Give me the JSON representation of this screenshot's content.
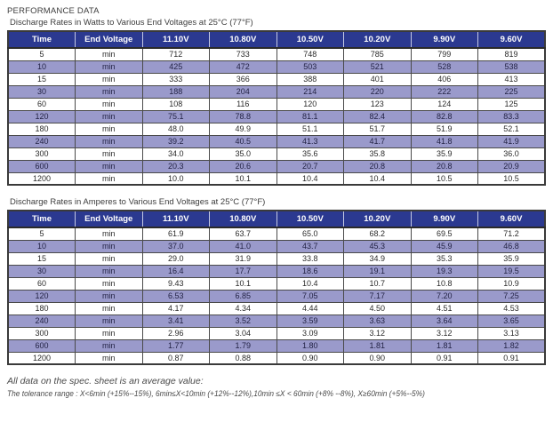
{
  "page": {
    "title": "PERFORMANCE DATA"
  },
  "tables": [
    {
      "caption": "Discharge Rates in Watts to Various End Voltages at 25°C (77°F)",
      "headers": [
        "Time",
        "End Voltage",
        "11.10V",
        "10.80V",
        "10.50V",
        "10.20V",
        "9.90V",
        "9.60V"
      ],
      "rows": [
        [
          "5",
          "min",
          "712",
          "733",
          "748",
          "785",
          "799",
          "819"
        ],
        [
          "10",
          "min",
          "425",
          "472",
          "503",
          "521",
          "528",
          "538"
        ],
        [
          "15",
          "min",
          "333",
          "366",
          "388",
          "401",
          "406",
          "413"
        ],
        [
          "30",
          "min",
          "188",
          "204",
          "214",
          "220",
          "222",
          "225"
        ],
        [
          "60",
          "min",
          "108",
          "116",
          "120",
          "123",
          "124",
          "125"
        ],
        [
          "120",
          "min",
          "75.1",
          "78.8",
          "81.1",
          "82.4",
          "82.8",
          "83.3"
        ],
        [
          "180",
          "min",
          "48.0",
          "49.9",
          "51.1",
          "51.7",
          "51.9",
          "52.1"
        ],
        [
          "240",
          "min",
          "39.2",
          "40.5",
          "41.3",
          "41.7",
          "41.8",
          "41.9"
        ],
        [
          "300",
          "min",
          "34.0",
          "35.0",
          "35.6",
          "35.8",
          "35.9",
          "36.0"
        ],
        [
          "600",
          "min",
          "20.3",
          "20.6",
          "20.7",
          "20.8",
          "20.8",
          "20.9"
        ],
        [
          "1200",
          "min",
          "10.0",
          "10.1",
          "10.4",
          "10.4",
          "10.5",
          "10.5"
        ]
      ]
    },
    {
      "caption": "Discharge Rates in Amperes to Various End Voltages at 25°C (77°F)",
      "headers": [
        "Time",
        "End Voltage",
        "11.10V",
        "10.80V",
        "10.50V",
        "10.20V",
        "9.90V",
        "9.60V"
      ],
      "rows": [
        [
          "5",
          "min",
          "61.9",
          "63.7",
          "65.0",
          "68.2",
          "69.5",
          "71.2"
        ],
        [
          "10",
          "min",
          "37.0",
          "41.0",
          "43.7",
          "45.3",
          "45.9",
          "46.8"
        ],
        [
          "15",
          "min",
          "29.0",
          "31.9",
          "33.8",
          "34.9",
          "35.3",
          "35.9"
        ],
        [
          "30",
          "min",
          "16.4",
          "17.7",
          "18.6",
          "19.1",
          "19.3",
          "19.5"
        ],
        [
          "60",
          "min",
          "9.43",
          "10.1",
          "10.4",
          "10.7",
          "10.8",
          "10.9"
        ],
        [
          "120",
          "min",
          "6.53",
          "6.85",
          "7.05",
          "7.17",
          "7.20",
          "7.25"
        ],
        [
          "180",
          "min",
          "4.17",
          "4.34",
          "4.44",
          "4.50",
          "4.51",
          "4.53"
        ],
        [
          "240",
          "min",
          "3.41",
          "3.52",
          "3.59",
          "3.63",
          "3.64",
          "3.65"
        ],
        [
          "300",
          "min",
          "2.96",
          "3.04",
          "3.09",
          "3.12",
          "3.12",
          "3.13"
        ],
        [
          "600",
          "min",
          "1.77",
          "1.79",
          "1.80",
          "1.81",
          "1.81",
          "1.82"
        ],
        [
          "1200",
          "min",
          "0.87",
          "0.88",
          "0.90",
          "0.90",
          "0.91",
          "0.91"
        ]
      ]
    }
  ],
  "footer": {
    "line1": "All data on the spec. sheet is an average value:",
    "line2": "The tolerance range : X<6min (+15%--15%), 6min≤X<10min (+12%--12%),10min ≤X < 60min (+8% --8%), X≥60min (+5%--5%)"
  },
  "colors": {
    "header_bg": "#2B3990",
    "header_text": "#FFFFFF",
    "alt_row_bg": "#9A9ACB",
    "border": "#3A3A3A",
    "text": "#2B2B2B"
  }
}
